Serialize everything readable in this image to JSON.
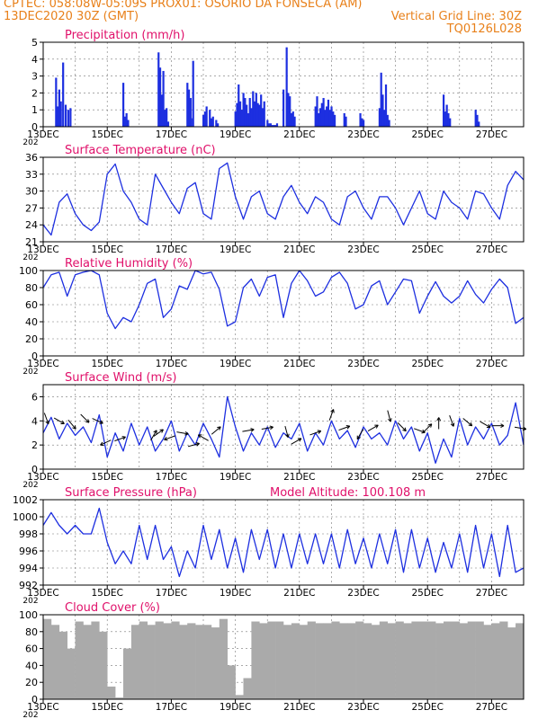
{
  "header": {
    "line1_left": "CPTEC:   058:08W-05:09S   PROX01: OSORIO DA FONSECA (AM)",
    "line2_left": "13DEC2020 30Z (GMT)",
    "line2_right": "Vertical Grid Line: 30Z",
    "line3_right": "TQ0126L028"
  },
  "colors": {
    "header": "#e8801a",
    "title": "#e0106a",
    "line": "#1d2fe0",
    "cloud": "#aaaaaa",
    "grid": "#777777"
  },
  "time_axis": {
    "start_day": 13,
    "end_day": 28,
    "year_label": "202",
    "labels": [
      {
        "day": 13,
        "text": "13DEC"
      },
      {
        "day": 15,
        "text": "15DEC"
      },
      {
        "day": 17,
        "text": "17DEC"
      },
      {
        "day": 19,
        "text": "19DEC"
      },
      {
        "day": 21,
        "text": "21DEC"
      },
      {
        "day": 23,
        "text": "23DEC"
      },
      {
        "day": 25,
        "text": "25DEC"
      },
      {
        "day": 27,
        "text": "27DEC"
      }
    ]
  },
  "chart_data": [
    {
      "id": "precip",
      "type": "bar",
      "title": "Precipitation (mm/h)",
      "ylim": [
        0,
        5
      ],
      "yticks": [
        0,
        1,
        2,
        3,
        4,
        5
      ],
      "x": [
        13.4,
        13.45,
        13.5,
        13.55,
        13.62,
        13.7,
        13.78,
        13.85,
        15.5,
        15.55,
        15.6,
        15.65,
        16.6,
        16.65,
        16.7,
        16.75,
        16.8,
        16.85,
        16.9,
        17.5,
        17.55,
        17.6,
        17.62,
        17.68,
        18.0,
        18.05,
        18.1,
        18.2,
        18.25,
        18.3,
        18.4,
        18.45,
        19.0,
        19.05,
        19.1,
        19.15,
        19.2,
        19.25,
        19.3,
        19.35,
        19.4,
        19.45,
        19.5,
        19.55,
        19.6,
        19.65,
        19.7,
        19.75,
        19.8,
        19.85,
        19.9,
        20.0,
        20.05,
        20.1,
        20.15,
        20.2,
        20.25,
        20.3,
        20.5,
        20.6,
        20.65,
        20.7,
        20.75,
        20.8,
        20.85,
        21.5,
        21.55,
        21.6,
        21.65,
        21.7,
        21.75,
        21.8,
        21.85,
        21.9,
        21.95,
        22.0,
        22.05,
        22.1,
        22.4,
        22.45,
        22.9,
        22.95,
        23.0,
        23.5,
        23.55,
        23.6,
        23.65,
        23.7,
        23.75,
        23.8,
        25.5,
        25.55,
        25.6,
        25.65,
        25.7,
        26.5,
        26.55,
        26.6
      ],
      "values": [
        2.9,
        1.2,
        2.2,
        1.5,
        3.8,
        1.3,
        1.0,
        1.1,
        2.6,
        0.6,
        0.8,
        0.4,
        4.4,
        3.5,
        1.9,
        3.3,
        1.0,
        1.1,
        0.3,
        2.6,
        2.2,
        1.7,
        0.5,
        3.9,
        0.7,
        0.9,
        1.2,
        1.0,
        0.5,
        0.6,
        0.4,
        0.2,
        0.9,
        1.4,
        2.5,
        1.5,
        1.0,
        2.0,
        1.7,
        1.3,
        0.8,
        1.7,
        1.1,
        2.1,
        1.5,
        2.0,
        1.4,
        1.3,
        1.9,
        1.1,
        1.5,
        0.4,
        0.2,
        0.2,
        0.1,
        0.1,
        0.1,
        0.2,
        2.2,
        4.7,
        2.0,
        1.8,
        0.8,
        0.9,
        0.6,
        1.2,
        1.8,
        0.8,
        1.1,
        1.4,
        1.7,
        1.0,
        1.2,
        1.6,
        1.0,
        1.2,
        0.9,
        0.7,
        0.8,
        0.6,
        0.8,
        0.5,
        0.4,
        1.1,
        3.2,
        1.9,
        1.0,
        2.5,
        0.7,
        0.4,
        1.9,
        0.9,
        1.3,
        0.8,
        0.5,
        1.0,
        0.7,
        0.3
      ]
    },
    {
      "id": "temp",
      "type": "line",
      "title": "Surface Temperature (nC)",
      "ylim": [
        21,
        36
      ],
      "yticks": [
        21,
        24,
        27,
        30,
        33,
        36
      ],
      "x": [
        13.0,
        13.25,
        13.5,
        13.75,
        14.0,
        14.25,
        14.5,
        14.75,
        15.0,
        15.25,
        15.5,
        15.75,
        16.0,
        16.25,
        16.5,
        16.75,
        17.0,
        17.25,
        17.5,
        17.75,
        18.0,
        18.25,
        18.5,
        18.75,
        19.0,
        19.25,
        19.5,
        19.75,
        20.0,
        20.25,
        20.5,
        20.75,
        21.0,
        21.25,
        21.5,
        21.75,
        22.0,
        22.25,
        22.5,
        22.75,
        23.0,
        23.25,
        23.5,
        23.75,
        24.0,
        24.25,
        24.5,
        24.75,
        25.0,
        25.25,
        25.5,
        25.75,
        26.0,
        26.25,
        26.5,
        26.75,
        27.0,
        27.25,
        27.5,
        27.75,
        28.0
      ],
      "values": [
        24,
        22.2,
        28,
        29.5,
        26,
        24,
        23,
        24.5,
        33,
        34.8,
        30,
        28,
        25,
        24,
        33,
        30.5,
        28,
        26,
        30.5,
        31.5,
        26,
        25,
        34,
        35,
        29,
        25,
        29,
        30,
        26,
        25,
        29,
        31,
        28,
        26,
        29,
        28,
        25,
        24,
        29,
        30,
        27,
        25,
        29,
        29,
        27,
        24,
        27,
        30,
        26,
        25,
        30,
        28,
        27,
        25,
        30,
        29.5,
        27,
        25,
        31,
        33.5,
        32
      ]
    },
    {
      "id": "rh",
      "type": "line",
      "title": "Relative Humidity (%)",
      "ylim": [
        0,
        100
      ],
      "yticks": [
        0,
        20,
        40,
        60,
        80,
        100
      ],
      "x": [
        13.0,
        13.25,
        13.5,
        13.75,
        14.0,
        14.25,
        14.5,
        14.75,
        15.0,
        15.25,
        15.5,
        15.75,
        16.0,
        16.25,
        16.5,
        16.75,
        17.0,
        17.25,
        17.5,
        17.75,
        18.0,
        18.25,
        18.5,
        18.75,
        19.0,
        19.25,
        19.5,
        19.75,
        20.0,
        20.25,
        20.5,
        20.75,
        21.0,
        21.25,
        21.5,
        21.75,
        22.0,
        22.25,
        22.5,
        22.75,
        23.0,
        23.25,
        23.5,
        23.75,
        24.0,
        24.25,
        24.5,
        24.75,
        25.0,
        25.25,
        25.5,
        25.75,
        26.0,
        26.25,
        26.5,
        26.75,
        27.0,
        27.25,
        27.5,
        27.75,
        28.0
      ],
      "values": [
        80,
        95,
        98,
        70,
        95,
        98,
        100,
        95,
        50,
        32,
        45,
        40,
        60,
        85,
        90,
        45,
        55,
        82,
        78,
        100,
        96,
        98,
        78,
        35,
        40,
        80,
        90,
        70,
        92,
        95,
        45,
        85,
        100,
        88,
        70,
        75,
        92,
        98,
        85,
        55,
        60,
        82,
        88,
        60,
        75,
        90,
        88,
        50,
        70,
        87,
        70,
        62,
        70,
        88,
        72,
        62,
        78,
        90,
        80,
        38,
        45
      ]
    },
    {
      "id": "wind",
      "type": "line",
      "title": "Surface Wind (m/s)",
      "ylim": [
        0,
        7
      ],
      "yticks": [
        0,
        2,
        4,
        6
      ],
      "x": [
        13.0,
        13.25,
        13.5,
        13.75,
        14.0,
        14.25,
        14.5,
        14.75,
        15.0,
        15.25,
        15.5,
        15.75,
        16.0,
        16.25,
        16.5,
        16.75,
        17.0,
        17.25,
        17.5,
        17.75,
        18.0,
        18.25,
        18.5,
        18.75,
        19.0,
        19.25,
        19.5,
        19.75,
        20.0,
        20.25,
        20.5,
        20.75,
        21.0,
        21.25,
        21.5,
        21.75,
        22.0,
        22.25,
        22.5,
        22.75,
        23.0,
        23.25,
        23.5,
        23.75,
        24.0,
        24.25,
        24.5,
        24.75,
        25.0,
        25.25,
        25.5,
        25.75,
        26.0,
        26.25,
        26.5,
        26.75,
        27.0,
        27.25,
        27.5,
        27.75,
        28.0
      ],
      "values": [
        3,
        4.3,
        2.5,
        3.8,
        2.8,
        3.5,
        2.2,
        4.5,
        1,
        3,
        1.5,
        3.8,
        2,
        3.5,
        1.5,
        2.5,
        4,
        1.5,
        3,
        2,
        3.8,
        2.5,
        1,
        6,
        3.5,
        1.5,
        3,
        2,
        3.5,
        1.8,
        3,
        2.5,
        3.8,
        1.5,
        3,
        2,
        4,
        2.5,
        3.2,
        1.8,
        3.5,
        2.5,
        3,
        2,
        4,
        2.5,
        3.5,
        1.5,
        3,
        0.5,
        2.5,
        1,
        4.2,
        2,
        3.5,
        2.5,
        3.8,
        2,
        2.8,
        5.5,
        2
      ]
    },
    {
      "id": "press",
      "type": "line",
      "title": "Surface Pressure (hPa)",
      "annotation": "Model Altitude: 100.108  m",
      "ylim": [
        992,
        1002
      ],
      "yticks": [
        992,
        994,
        996,
        998,
        1000,
        1002
      ],
      "x": [
        13.0,
        13.25,
        13.5,
        13.75,
        14.0,
        14.25,
        14.5,
        14.75,
        15.0,
        15.25,
        15.5,
        15.75,
        16.0,
        16.25,
        16.5,
        16.75,
        17.0,
        17.25,
        17.5,
        17.75,
        18.0,
        18.25,
        18.5,
        18.75,
        19.0,
        19.25,
        19.5,
        19.75,
        20.0,
        20.25,
        20.5,
        20.75,
        21.0,
        21.25,
        21.5,
        21.75,
        22.0,
        22.25,
        22.5,
        22.75,
        23.0,
        23.25,
        23.5,
        23.75,
        24.0,
        24.25,
        24.5,
        24.75,
        25.0,
        25.25,
        25.5,
        25.75,
        26.0,
        26.25,
        26.5,
        26.75,
        27.0,
        27.25,
        27.5,
        27.75,
        28.0
      ],
      "values": [
        999,
        1000.5,
        999,
        998,
        999,
        998,
        998,
        1001,
        997,
        994.5,
        996,
        994.5,
        999,
        995,
        999,
        995,
        996.5,
        993,
        996,
        994,
        999,
        995,
        998.5,
        994,
        997.5,
        993.5,
        998.5,
        995,
        998.5,
        994,
        998,
        994,
        998,
        994.5,
        998,
        994.5,
        998,
        994,
        998.5,
        994.5,
        997.5,
        994,
        998,
        994.5,
        998.5,
        993.5,
        998.5,
        994,
        997.5,
        993.5,
        997,
        994,
        998,
        993.5,
        999,
        994,
        998,
        993,
        999,
        993.5,
        994
      ]
    },
    {
      "id": "cloud",
      "type": "bar",
      "title": "Cloud Cover (%)",
      "ylim": [
        0,
        100
      ],
      "yticks": [
        0,
        20,
        40,
        60,
        80,
        100
      ],
      "x": [
        13.0,
        13.25,
        13.5,
        13.75,
        14.0,
        14.25,
        14.5,
        14.75,
        15.0,
        15.25,
        15.5,
        15.75,
        16.0,
        16.25,
        16.5,
        16.75,
        17.0,
        17.25,
        17.5,
        17.75,
        18.0,
        18.25,
        18.5,
        18.75,
        19.0,
        19.25,
        19.5,
        19.75,
        20.0,
        20.25,
        20.5,
        20.75,
        21.0,
        21.25,
        21.5,
        21.75,
        22.0,
        22.25,
        22.5,
        22.75,
        23.0,
        23.25,
        23.5,
        23.75,
        24.0,
        24.25,
        24.5,
        24.75,
        25.0,
        25.25,
        25.5,
        25.75,
        26.0,
        26.25,
        26.5,
        26.75,
        27.0,
        27.25,
        27.5,
        27.75,
        28.0
      ],
      "values": [
        95,
        88,
        80,
        60,
        92,
        88,
        92,
        80,
        15,
        2,
        60,
        88,
        92,
        88,
        92,
        90,
        92,
        88,
        90,
        88,
        88,
        85,
        95,
        40,
        5,
        25,
        92,
        90,
        92,
        92,
        88,
        90,
        88,
        92,
        90,
        90,
        92,
        90,
        90,
        92,
        90,
        88,
        92,
        90,
        92,
        90,
        92,
        92,
        92,
        90,
        92,
        92,
        90,
        92,
        92,
        88,
        90,
        92,
        85,
        88,
        90
      ]
    }
  ],
  "wind_arrows": [
    {
      "day": 13.1,
      "speed": 4.2,
      "dir_deg": 160
    },
    {
      "day": 13.5,
      "speed": 4.0,
      "dir_deg": 120
    },
    {
      "day": 13.9,
      "speed": 3.7,
      "dir_deg": 140
    },
    {
      "day": 14.3,
      "speed": 4.2,
      "dir_deg": 135
    },
    {
      "day": 14.7,
      "speed": 4.0,
      "dir_deg": 115
    },
    {
      "day": 14.95,
      "speed": 2.2,
      "dir_deg": 245
    },
    {
      "day": 15.4,
      "speed": 2.5,
      "dir_deg": 70
    },
    {
      "day": 16.45,
      "speed": 2.8,
      "dir_deg": 30
    },
    {
      "day": 16.6,
      "speed": 3.0,
      "dir_deg": 55
    },
    {
      "day": 16.95,
      "speed": 2.6,
      "dir_deg": 250
    },
    {
      "day": 17.35,
      "speed": 3.0,
      "dir_deg": 100
    },
    {
      "day": 17.7,
      "speed": 2.0,
      "dir_deg": 75
    },
    {
      "day": 18.0,
      "speed": 2.6,
      "dir_deg": 300
    },
    {
      "day": 18.4,
      "speed": 3.2,
      "dir_deg": 50
    },
    {
      "day": 19.4,
      "speed": 3.2,
      "dir_deg": 80
    },
    {
      "day": 20.0,
      "speed": 3.4,
      "dir_deg": 80
    },
    {
      "day": 20.6,
      "speed": 3.1,
      "dir_deg": 165
    },
    {
      "day": 20.9,
      "speed": 2.3,
      "dir_deg": 60
    },
    {
      "day": 21.5,
      "speed": 3.0,
      "dir_deg": 70
    },
    {
      "day": 22.0,
      "speed": 4.5,
      "dir_deg": 20
    },
    {
      "day": 22.4,
      "speed": 3.4,
      "dir_deg": 70
    },
    {
      "day": 22.9,
      "speed": 2.9,
      "dir_deg": 210
    },
    {
      "day": 23.3,
      "speed": 3.4,
      "dir_deg": 60
    },
    {
      "day": 23.8,
      "speed": 4.4,
      "dir_deg": 165
    },
    {
      "day": 24.2,
      "speed": 3.5,
      "dir_deg": 135
    },
    {
      "day": 24.75,
      "speed": 3.2,
      "dir_deg": 110
    },
    {
      "day": 25.0,
      "speed": 3.4,
      "dir_deg": 45
    },
    {
      "day": 25.35,
      "speed": 3.8,
      "dir_deg": 0
    },
    {
      "day": 25.75,
      "speed": 4.0,
      "dir_deg": 160
    },
    {
      "day": 26.25,
      "speed": 3.9,
      "dir_deg": 130
    },
    {
      "day": 26.8,
      "speed": 3.7,
      "dir_deg": 120
    },
    {
      "day": 27.2,
      "speed": 3.6,
      "dir_deg": 90
    },
    {
      "day": 27.9,
      "speed": 3.4,
      "dir_deg": 100
    }
  ]
}
